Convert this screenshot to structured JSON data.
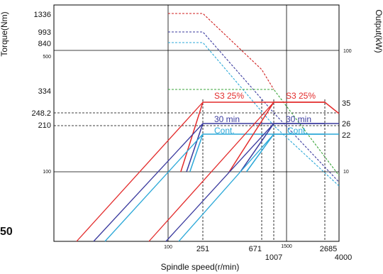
{
  "chart_data": {
    "type": "line",
    "xlabel": "Spindle speed(r/min)",
    "ylabel_left": "Torque(Nm)",
    "ylabel_right": "Output(kW)",
    "x_scale": "log",
    "y_scale": "log",
    "x_ticks_major": [
      "251",
      "671",
      "1007",
      "2685",
      "4000"
    ],
    "x_ticks_minor": [
      "100",
      "1500"
    ],
    "y_ticks_left_major": [
      "1336",
      "993",
      "840",
      "334",
      "248.2",
      "210"
    ],
    "y_ticks_left_minor": [
      "500",
      "100"
    ],
    "y_ticks_right_major": [
      "35",
      "26",
      "22"
    ],
    "y_ticks_right_minor": [
      "100",
      "10"
    ],
    "edge_number": "50",
    "colors": {
      "s3_25": "#e32b2b",
      "min30": "#3a3a9e",
      "cont": "#2ba8d8",
      "peak_torque": "#d01f1f",
      "green": "#3aa53a"
    },
    "series_labels": {
      "s3_25_low": "S3 25%",
      "s3_25_high": "S3 25%",
      "min30_low": "30 min",
      "min30_high": "30 min",
      "cont_low": "Cont.",
      "cont_high": "Cont."
    },
    "torque_curves": [
      {
        "name": "1336",
        "color": "#d01f1f",
        "points": [
          [
            100,
            1336
          ],
          [
            251,
            1336
          ],
          [
            671,
            500
          ],
          [
            1007,
            334
          ]
        ]
      },
      {
        "name": "993",
        "color": "#3a3a9e",
        "points": [
          [
            100,
            993
          ],
          [
            251,
            993
          ],
          [
            1007,
            248.2
          ],
          [
            4000,
            62
          ]
        ]
      },
      {
        "name": "840",
        "color": "#2ba8d8",
        "points": [
          [
            100,
            840
          ],
          [
            251,
            840
          ],
          [
            1007,
            210
          ],
          [
            4000,
            52
          ]
        ]
      },
      {
        "name": "334",
        "color": "#3aa53a",
        "points": [
          [
            100,
            334
          ],
          [
            1007,
            334
          ],
          [
            4000,
            84
          ]
        ]
      }
    ],
    "output_curves": [
      {
        "name": "S3 25%",
        "color": "#e32b2b",
        "points": [
          [
            140,
            10
          ],
          [
            251,
            35
          ],
          [
            671,
            35
          ],
          [
            1007,
            35
          ],
          [
            2685,
            35
          ],
          [
            4000,
            30
          ]
        ]
      },
      {
        "name": "30 min",
        "color": "#3a3a9e",
        "points": [
          [
            163,
            10
          ],
          [
            251,
            26
          ],
          [
            1007,
            26
          ],
          [
            2685,
            26
          ],
          [
            4000,
            26
          ]
        ]
      },
      {
        "name": "Cont.",
        "color": "#2ba8d8",
        "points": [
          [
            178,
            10
          ],
          [
            251,
            22
          ],
          [
            1007,
            22
          ],
          [
            2685,
            22
          ],
          [
            4000,
            22
          ]
        ]
      },
      {
        "name": "S3 25% (high)",
        "color": "#e32b2b",
        "points": [
          [
            390,
            10
          ],
          [
            1007,
            35
          ],
          [
            2685,
            35
          ]
        ]
      },
      {
        "name": "30 min (high)",
        "color": "#3a3a9e",
        "points": [
          [
            470,
            10
          ],
          [
            1007,
            26
          ],
          [
            2685,
            26
          ]
        ]
      },
      {
        "name": "Cont. (high)",
        "color": "#2ba8d8",
        "points": [
          [
            520,
            10
          ],
          [
            1007,
            22
          ],
          [
            2685,
            22
          ]
        ]
      }
    ]
  }
}
